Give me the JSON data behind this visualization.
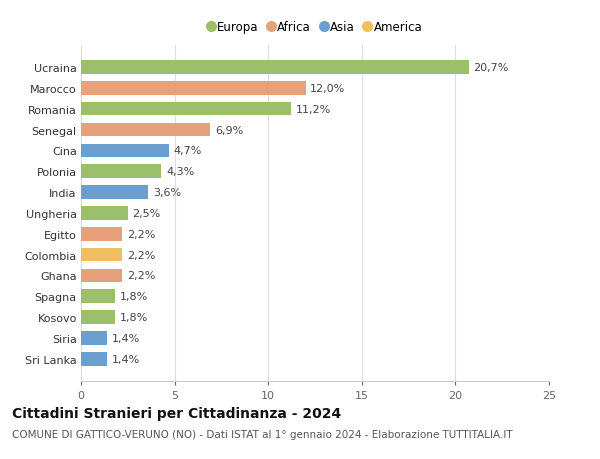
{
  "categories": [
    "Sri Lanka",
    "Siria",
    "Kosovo",
    "Spagna",
    "Ghana",
    "Colombia",
    "Egitto",
    "Ungheria",
    "India",
    "Polonia",
    "Cina",
    "Senegal",
    "Romania",
    "Marocco",
    "Ucraina"
  ],
  "values": [
    1.4,
    1.4,
    1.8,
    1.8,
    2.2,
    2.2,
    2.2,
    2.5,
    3.6,
    4.3,
    4.7,
    6.9,
    11.2,
    12.0,
    20.7
  ],
  "labels": [
    "1,4%",
    "1,4%",
    "1,8%",
    "1,8%",
    "2,2%",
    "2,2%",
    "2,2%",
    "2,5%",
    "3,6%",
    "4,3%",
    "4,7%",
    "6,9%",
    "11,2%",
    "12,0%",
    "20,7%"
  ],
  "colors": [
    "#6a9fd0",
    "#6a9fd0",
    "#9bbf6a",
    "#9bbf6a",
    "#e8a07a",
    "#f0c060",
    "#e8a07a",
    "#9bbf6a",
    "#6a9fd0",
    "#9bbf6a",
    "#6a9fd0",
    "#e8a07a",
    "#9bbf6a",
    "#e8a07a",
    "#9bbf6a"
  ],
  "legend": [
    {
      "label": "Europa",
      "color": "#9bbf6a"
    },
    {
      "label": "Africa",
      "color": "#e8a07a"
    },
    {
      "label": "Asia",
      "color": "#6a9fd0"
    },
    {
      "label": "America",
      "color": "#f0c060"
    }
  ],
  "title": "Cittadini Stranieri per Cittadinanza - 2024",
  "subtitle": "COMUNE DI GATTICO-VERUNO (NO) - Dati ISTAT al 1° gennaio 2024 - Elaborazione TUTTITALIA.IT",
  "xlim": [
    0,
    25
  ],
  "xticks": [
    0,
    5,
    10,
    15,
    20,
    25
  ],
  "background_color": "#ffffff",
  "grid_color": "#dddddd",
  "bar_height": 0.65,
  "title_fontsize": 10,
  "subtitle_fontsize": 7.5,
  "tick_fontsize": 8,
  "label_fontsize": 8
}
